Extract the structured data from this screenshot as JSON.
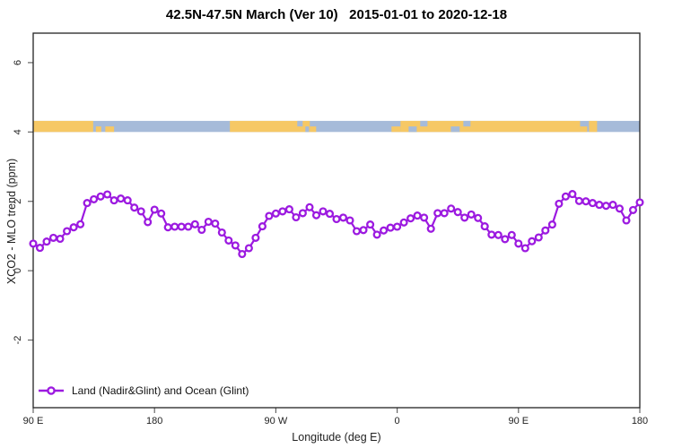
{
  "title": "42.5N-47.5N March (Ver 10)   2015-01-01 to 2020-12-18",
  "axes": {
    "x": {
      "label": "Longitude (deg E)",
      "ticks": [
        {
          "label": "90 E",
          "value": 90
        },
        {
          "label": "180",
          "value": 180
        },
        {
          "label": "90 W",
          "value": 270
        },
        {
          "label": "0",
          "value": 360
        },
        {
          "label": "90 E",
          "value": 450
        },
        {
          "label": "180",
          "value": 540
        }
      ]
    },
    "y": {
      "label": "XCO2 - MLO trend (ppm)",
      "ticks": [
        {
          "label": "6",
          "value": 6
        },
        {
          "label": "4",
          "value": 4
        },
        {
          "label": "2",
          "value": 2
        },
        {
          "label": "0",
          "value": 0
        },
        {
          "label": "-2",
          "value": -2
        }
      ]
    }
  },
  "legend": {
    "label": "Land (Nadir&Glint) and Ocean (Glint)"
  },
  "colors": {
    "series": "#9C1AE0",
    "marker_fill": "#ffffff",
    "land": "#F6C865",
    "ocean": "#A6BBD9",
    "axis": "#222222",
    "tick": "#666666",
    "text": "#222222"
  },
  "band": {
    "description": "land-ocean surface-type strip along longitude",
    "ppm_range": [
      4.0,
      4.32
    ],
    "land_segments": [
      {
        "from": 90,
        "to": 134.5,
        "part": "full"
      },
      {
        "from": 136.5,
        "to": 140.5,
        "part": "bottom"
      },
      {
        "from": 143.5,
        "to": 150,
        "part": "bottom"
      },
      {
        "from": 235.9,
        "to": 295.2,
        "part": "full"
      },
      {
        "from": 295.2,
        "to": 299.9,
        "part": "bottom"
      },
      {
        "from": 355.8,
        "to": 362.5,
        "part": "bottom"
      },
      {
        "from": 362.5,
        "to": 495.7,
        "part": "full"
      },
      {
        "from": 495.7,
        "to": 501.0,
        "part": "bottom"
      },
      {
        "from": 502.3,
        "to": 508.3,
        "part": "full"
      }
    ],
    "ocean_patches": [
      {
        "from": 285.9,
        "to": 289.9,
        "part": "top"
      },
      {
        "from": 291.9,
        "to": 294.6,
        "part": "bottom"
      },
      {
        "from": 368.5,
        "to": 374.5,
        "part": "bottom"
      },
      {
        "from": 377.1,
        "to": 382.5,
        "part": "top"
      },
      {
        "from": 399.8,
        "to": 406.4,
        "part": "bottom"
      },
      {
        "from": 409.1,
        "to": 414.4,
        "part": "top"
      }
    ]
  },
  "chart_data": {
    "type": "line",
    "title": "42.5N-47.5N March (Ver 10)   2015-01-01 to 2020-12-18",
    "xlabel": "Longitude (deg E)",
    "ylabel": "XCO2 - MLO trend (ppm)",
    "series_name": "Land (Nadir&Glint) and Ocean (Glint)",
    "x_note": "unwrapped longitude deg E, 90E eastward around to 180 (90+450)",
    "x_start": 90,
    "x_step": 5,
    "xlim": [
      90,
      540
    ],
    "ylim": [
      -3.95,
      6.85
    ],
    "grid": false,
    "legend_position": "bottom-left-inside",
    "values": [
      0.78,
      0.66,
      0.84,
      0.95,
      0.92,
      1.14,
      1.25,
      1.34,
      1.95,
      2.06,
      2.14,
      2.2,
      2.03,
      2.08,
      2.03,
      1.82,
      1.71,
      1.4,
      1.76,
      1.65,
      1.25,
      1.27,
      1.27,
      1.27,
      1.34,
      1.18,
      1.41,
      1.36,
      1.1,
      0.87,
      0.73,
      0.48,
      0.65,
      0.95,
      1.28,
      1.58,
      1.65,
      1.71,
      1.77,
      1.54,
      1.66,
      1.83,
      1.6,
      1.71,
      1.64,
      1.49,
      1.53,
      1.45,
      1.14,
      1.17,
      1.33,
      1.04,
      1.16,
      1.24,
      1.27,
      1.39,
      1.51,
      1.59,
      1.53,
      1.21,
      1.66,
      1.66,
      1.79,
      1.69,
      1.53,
      1.62,
      1.52,
      1.28,
      1.04,
      1.03,
      0.91,
      1.03,
      0.78,
      0.65,
      0.85,
      0.96,
      1.16,
      1.33,
      1.93,
      2.14,
      2.21,
      2.01,
      2.0,
      1.95,
      1.9,
      1.87,
      1.9,
      1.79,
      1.45,
      1.75,
      1.97
    ]
  }
}
